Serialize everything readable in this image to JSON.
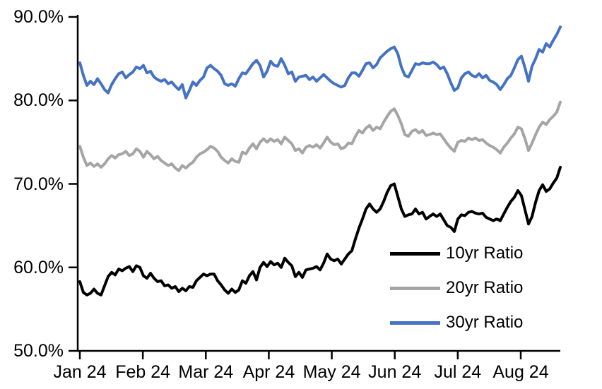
{
  "page": {
    "background": "#ffffff"
  },
  "chart_data": {
    "type": "line",
    "title": "",
    "x_tick_labels": [
      "Jan 24",
      "Feb 24",
      "Mar 24",
      "Apr 24",
      "May 24",
      "Jun 24",
      "Jul 24",
      "Aug 24"
    ],
    "y_tick_labels": [
      "90.0%",
      "80.0%",
      "70.0%",
      "60.0%",
      "50.0%"
    ],
    "ylim": [
      50,
      90
    ],
    "y_tick_step": 10,
    "y_axis_format": "percent",
    "x_axis_span_months": [
      0,
      7.63
    ],
    "grid": "off",
    "legend_position": "inside-lower-right",
    "axis_color": "#000000",
    "series": [
      {
        "name": "10yr Ratio",
        "color": "#000000",
        "values": [
          58.3,
          57.0,
          56.7,
          56.9,
          57.4,
          56.9,
          56.7,
          57.8,
          58.9,
          59.4,
          59.1,
          59.8,
          59.6,
          59.9,
          60.1,
          59.5,
          60.2,
          60.0,
          59.0,
          58.7,
          59.3,
          58.7,
          58.3,
          58.4,
          57.8,
          57.9,
          57.5,
          57.7,
          57.1,
          57.5,
          57.2,
          57.7,
          57.6,
          58.4,
          58.8,
          59.2,
          59.0,
          59.2,
          59.2,
          58.4,
          57.9,
          57.3,
          56.9,
          57.4,
          57.0,
          57.3,
          58.4,
          58.1,
          59.0,
          59.5,
          58.5,
          60.0,
          60.6,
          60.1,
          60.7,
          60.3,
          60.5,
          60.0,
          61.1,
          60.6,
          60.2,
          58.9,
          59.4,
          58.8,
          59.7,
          59.8,
          59.9,
          60.1,
          59.7,
          60.5,
          61.6,
          61.0,
          60.8,
          61.0,
          60.4,
          61.0,
          61.6,
          62.0,
          63.4,
          64.7,
          65.8,
          67.0,
          67.6,
          67.0,
          66.6,
          67.0,
          67.9,
          69.0,
          69.8,
          70.0,
          68.5,
          67.0,
          66.1,
          66.3,
          66.4,
          67.0,
          66.4,
          66.6,
          65.8,
          66.1,
          66.4,
          66.1,
          66.4,
          65.7,
          65.0,
          64.8,
          64.3,
          65.8,
          66.3,
          66.2,
          66.6,
          66.7,
          66.5,
          66.4,
          66.5,
          66.0,
          65.8,
          65.6,
          65.8,
          65.6,
          66.4,
          67.2,
          67.9,
          68.4,
          69.2,
          68.6,
          66.9,
          65.2,
          66.1,
          67.8,
          69.2,
          69.9,
          69.1,
          69.4,
          70.1,
          70.7,
          72.0
        ]
      },
      {
        "name": "20yr Ratio",
        "color": "#A5A5A5",
        "values": [
          74.5,
          73.2,
          72.2,
          72.5,
          72.1,
          72.4,
          72.0,
          72.4,
          73.0,
          73.4,
          73.1,
          73.5,
          73.6,
          73.9,
          73.4,
          73.6,
          74.2,
          73.9,
          73.2,
          73.9,
          73.5,
          73.0,
          73.3,
          72.8,
          72.5,
          72.2,
          72.4,
          71.9,
          71.6,
          72.2,
          71.9,
          72.3,
          72.6,
          73.2,
          73.6,
          73.8,
          74.1,
          74.5,
          74.3,
          73.9,
          73.2,
          72.8,
          72.5,
          73.0,
          72.7,
          72.6,
          73.8,
          73.6,
          74.3,
          74.8,
          74.2,
          75.0,
          75.4,
          75.0,
          75.4,
          75.1,
          75.3,
          74.8,
          75.6,
          75.2,
          74.8,
          74.0,
          74.2,
          73.7,
          74.4,
          74.6,
          74.4,
          74.7,
          74.3,
          74.9,
          75.6,
          75.0,
          74.7,
          74.8,
          74.2,
          74.4,
          74.9,
          74.8,
          75.7,
          76.4,
          76.1,
          76.7,
          77.0,
          76.4,
          76.8,
          76.6,
          77.4,
          78.1,
          78.7,
          79.0,
          78.2,
          77.2,
          75.9,
          75.7,
          76.3,
          76.5,
          76.1,
          76.4,
          75.8,
          75.9,
          76.1,
          75.9,
          76.0,
          75.4,
          74.8,
          74.3,
          73.9,
          75.0,
          75.2,
          75.1,
          75.5,
          75.3,
          75.5,
          75.2,
          75.3,
          74.9,
          74.6,
          74.4,
          74.1,
          73.7,
          74.4,
          74.9,
          75.5,
          76.0,
          76.8,
          76.6,
          75.4,
          74.0,
          74.9,
          75.9,
          76.8,
          77.4,
          77.1,
          77.7,
          78.1,
          78.6,
          79.8
        ]
      },
      {
        "name": "30yr Ratio",
        "color": "#4472C4",
        "values": [
          84.5,
          83.0,
          81.8,
          82.3,
          81.9,
          82.6,
          82.0,
          81.3,
          80.9,
          81.9,
          82.6,
          83.2,
          83.4,
          82.7,
          83.1,
          83.4,
          84.0,
          83.8,
          84.2,
          83.3,
          83.5,
          82.8,
          82.5,
          82.3,
          82.5,
          82.0,
          82.2,
          81.7,
          81.3,
          81.9,
          80.3,
          81.2,
          82.2,
          81.8,
          82.4,
          82.8,
          83.9,
          84.2,
          83.8,
          83.5,
          83.0,
          82.0,
          81.8,
          82.0,
          81.7,
          82.6,
          83.3,
          83.2,
          83.8,
          84.4,
          84.8,
          84.2,
          82.8,
          83.5,
          84.7,
          84.2,
          84.1,
          85.0,
          84.2,
          83.2,
          83.4,
          82.3,
          82.8,
          82.9,
          83.0,
          82.5,
          82.8,
          82.3,
          82.7,
          83.1,
          82.7,
          82.3,
          82.0,
          81.8,
          81.6,
          81.8,
          82.7,
          83.3,
          83.3,
          82.9,
          83.6,
          84.4,
          84.5,
          83.9,
          84.3,
          85.1,
          85.5,
          85.9,
          86.2,
          86.4,
          85.6,
          84.0,
          83.0,
          82.8,
          83.6,
          84.4,
          84.3,
          84.5,
          84.4,
          84.4,
          84.6,
          84.3,
          83.8,
          84.0,
          83.2,
          82.1,
          81.2,
          81.5,
          82.7,
          83.2,
          83.4,
          83.0,
          82.8,
          83.2,
          82.7,
          83.0,
          82.4,
          82.2,
          81.9,
          81.3,
          81.9,
          82.6,
          83.0,
          83.9,
          84.9,
          85.3,
          83.9,
          82.3,
          84.1,
          85.0,
          86.1,
          85.8,
          86.8,
          86.4,
          87.2,
          87.9,
          88.8
        ]
      }
    ]
  }
}
